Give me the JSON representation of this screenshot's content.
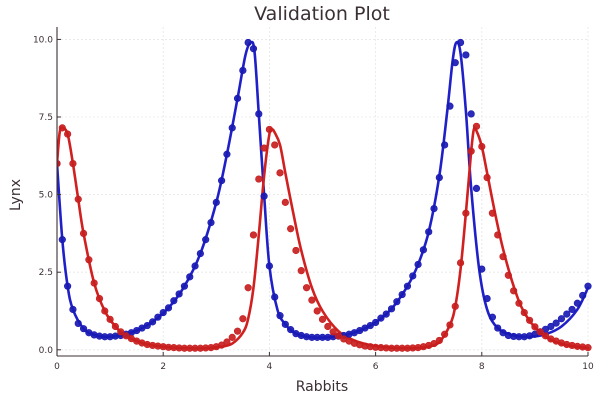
{
  "chart_data": {
    "type": "line",
    "title": "Validation Plot",
    "xlabel": "Rabbits",
    "ylabel": "Lynx",
    "xlim": [
      0,
      10
    ],
    "ylim": [
      -0.2,
      10.4
    ],
    "xticks": [
      0,
      2,
      4,
      6,
      8,
      10
    ],
    "xtick_labels": [
      "0",
      "2",
      "4",
      "6",
      "8",
      "10"
    ],
    "yticks": [
      0,
      2.5,
      5,
      7.5,
      10
    ],
    "ytick_labels": [
      "0.0",
      "2.5",
      "5.0",
      "7.5",
      "10.0"
    ],
    "grid": true,
    "legend": "none",
    "colors": {
      "blue": "#2020c8",
      "red": "#d02020",
      "blue_dots": "#1a1ab4",
      "red_dots": "#c81e1e"
    },
    "series": [
      {
        "style": "line",
        "color": "#2020c8",
        "x": [
          0,
          0.1,
          0.2,
          0.3,
          0.5,
          0.7,
          0.9,
          1.2,
          1.5,
          1.8,
          2.1,
          2.4,
          2.7,
          3.0,
          3.2,
          3.4,
          3.55,
          3.65,
          3.72,
          3.8,
          3.9,
          4.0,
          4.15,
          4.3,
          4.5,
          4.8,
          5.1,
          5.4,
          5.7,
          6.0,
          6.3,
          6.6,
          6.8,
          7.0,
          7.2,
          7.35,
          7.45,
          7.52,
          7.6,
          7.7,
          7.8,
          7.95,
          8.1,
          8.3,
          8.6,
          8.9,
          9.2,
          9.5,
          9.8,
          10.0
        ],
        "y": [
          6.0,
          3.55,
          2.05,
          1.3,
          0.68,
          0.48,
          0.42,
          0.46,
          0.62,
          0.9,
          1.35,
          2.05,
          3.1,
          4.75,
          6.3,
          8.1,
          9.5,
          9.9,
          9.6,
          7.6,
          5.0,
          2.7,
          1.3,
          0.82,
          0.52,
          0.4,
          0.4,
          0.46,
          0.62,
          0.88,
          1.32,
          2.05,
          2.75,
          3.8,
          5.6,
          7.7,
          9.3,
          9.9,
          9.55,
          7.7,
          5.2,
          2.6,
          1.3,
          0.7,
          0.46,
          0.42,
          0.5,
          0.75,
          1.3,
          2.0
        ]
      },
      {
        "style": "line",
        "color": "#d02020",
        "x": [
          0,
          0.05,
          0.1,
          0.2,
          0.3,
          0.4,
          0.5,
          0.7,
          0.9,
          1.1,
          1.3,
          1.6,
          1.9,
          2.2,
          2.5,
          2.8,
          3.1,
          3.3,
          3.5,
          3.6,
          3.7,
          3.8,
          3.9,
          4.0,
          4.05,
          4.1,
          4.2,
          4.3,
          4.45,
          4.6,
          4.8,
          5.0,
          5.3,
          5.6,
          5.9,
          6.2,
          6.5,
          6.8,
          7.0,
          7.2,
          7.4,
          7.5,
          7.6,
          7.7,
          7.8,
          7.85,
          7.9,
          8.0,
          8.1,
          8.25,
          8.4,
          8.6,
          8.8,
          9.1,
          9.4,
          9.7,
          10.0
        ],
        "y": [
          6.0,
          7.0,
          7.15,
          6.95,
          6.0,
          4.85,
          3.75,
          2.15,
          1.25,
          0.75,
          0.45,
          0.22,
          0.12,
          0.07,
          0.05,
          0.05,
          0.1,
          0.2,
          0.55,
          1.0,
          2.0,
          3.7,
          5.6,
          6.95,
          7.1,
          7.0,
          6.6,
          5.7,
          4.4,
          3.2,
          2.0,
          1.25,
          0.6,
          0.3,
          0.15,
          0.08,
          0.05,
          0.06,
          0.1,
          0.25,
          0.8,
          1.4,
          2.6,
          4.4,
          6.4,
          7.1,
          7.05,
          6.55,
          5.7,
          4.4,
          3.25,
          2.05,
          1.2,
          0.55,
          0.25,
          0.12,
          0.06
        ]
      },
      {
        "style": "markers",
        "color": "#1a1ab4",
        "x": [
          0,
          0.1,
          0.2,
          0.3,
          0.4,
          0.5,
          0.6,
          0.7,
          0.8,
          0.9,
          1.0,
          1.1,
          1.2,
          1.3,
          1.4,
          1.5,
          1.6,
          1.7,
          1.8,
          1.9,
          2.0,
          2.1,
          2.2,
          2.3,
          2.4,
          2.5,
          2.6,
          2.7,
          2.8,
          2.9,
          3.0,
          3.1,
          3.2,
          3.3,
          3.4,
          3.5,
          3.6,
          3.7,
          3.8,
          3.9,
          4.0,
          4.1,
          4.2,
          4.3,
          4.4,
          4.5,
          4.6,
          4.7,
          4.8,
          4.9,
          5.0,
          5.1,
          5.2,
          5.3,
          5.4,
          5.5,
          5.6,
          5.7,
          5.8,
          5.9,
          6.0,
          6.1,
          6.2,
          6.3,
          6.4,
          6.5,
          6.6,
          6.7,
          6.8,
          6.9,
          7.0,
          7.1,
          7.2,
          7.3,
          7.4,
          7.5,
          7.6,
          7.7,
          7.8,
          7.9,
          8.0,
          8.1,
          8.2,
          8.3,
          8.4,
          8.5,
          8.6,
          8.7,
          8.8,
          8.9,
          9.0,
          9.1,
          9.2,
          9.3,
          9.4,
          9.5,
          9.6,
          9.7,
          9.8,
          9.9,
          10.0
        ],
        "y": [
          6.0,
          3.55,
          2.05,
          1.3,
          0.85,
          0.68,
          0.55,
          0.48,
          0.44,
          0.42,
          0.42,
          0.44,
          0.46,
          0.5,
          0.55,
          0.62,
          0.7,
          0.78,
          0.9,
          1.05,
          1.2,
          1.35,
          1.58,
          1.8,
          2.05,
          2.35,
          2.7,
          3.1,
          3.55,
          4.1,
          4.75,
          5.45,
          6.3,
          7.15,
          8.1,
          9.0,
          9.9,
          9.7,
          7.6,
          4.95,
          2.7,
          1.7,
          1.1,
          0.82,
          0.65,
          0.52,
          0.46,
          0.42,
          0.4,
          0.4,
          0.4,
          0.4,
          0.42,
          0.44,
          0.46,
          0.5,
          0.55,
          0.62,
          0.7,
          0.78,
          0.88,
          1.02,
          1.15,
          1.32,
          1.55,
          1.78,
          2.05,
          2.38,
          2.75,
          3.22,
          3.8,
          4.55,
          5.55,
          6.6,
          7.85,
          9.25,
          9.9,
          9.5,
          7.6,
          5.2,
          2.6,
          1.65,
          1.05,
          0.7,
          0.55,
          0.46,
          0.43,
          0.42,
          0.42,
          0.45,
          0.5,
          0.58,
          0.66,
          0.75,
          0.86,
          1.0,
          1.15,
          1.3,
          1.5,
          1.75,
          2.05
        ]
      },
      {
        "style": "markers",
        "color": "#c81e1e",
        "x": [
          0,
          0.1,
          0.2,
          0.3,
          0.4,
          0.5,
          0.6,
          0.7,
          0.8,
          0.9,
          1.0,
          1.1,
          1.2,
          1.3,
          1.4,
          1.5,
          1.6,
          1.7,
          1.8,
          1.9,
          2.0,
          2.1,
          2.2,
          2.3,
          2.4,
          2.5,
          2.6,
          2.7,
          2.8,
          2.9,
          3.0,
          3.1,
          3.2,
          3.3,
          3.4,
          3.5,
          3.6,
          3.7,
          3.8,
          3.9,
          4.0,
          4.1,
          4.2,
          4.3,
          4.4,
          4.5,
          4.6,
          4.7,
          4.8,
          4.9,
          5.0,
          5.1,
          5.2,
          5.3,
          5.4,
          5.5,
          5.6,
          5.7,
          5.8,
          5.9,
          6.0,
          6.1,
          6.2,
          6.3,
          6.4,
          6.5,
          6.6,
          6.7,
          6.8,
          6.9,
          7.0,
          7.1,
          7.2,
          7.3,
          7.4,
          7.5,
          7.6,
          7.7,
          7.8,
          7.9,
          8.0,
          8.1,
          8.2,
          8.3,
          8.4,
          8.5,
          8.6,
          8.7,
          8.8,
          8.9,
          9.0,
          9.1,
          9.2,
          9.3,
          9.4,
          9.5,
          9.6,
          9.7,
          9.8,
          9.9,
          10.0
        ],
        "y": [
          6.0,
          7.15,
          6.95,
          6.0,
          4.85,
          3.75,
          2.9,
          2.15,
          1.65,
          1.25,
          0.98,
          0.75,
          0.58,
          0.45,
          0.36,
          0.28,
          0.22,
          0.17,
          0.14,
          0.12,
          0.1,
          0.08,
          0.07,
          0.06,
          0.05,
          0.05,
          0.05,
          0.05,
          0.06,
          0.07,
          0.1,
          0.15,
          0.25,
          0.4,
          0.6,
          1.0,
          2.0,
          3.7,
          5.5,
          6.5,
          7.1,
          6.6,
          5.7,
          4.75,
          3.9,
          3.2,
          2.55,
          2.0,
          1.6,
          1.25,
          0.98,
          0.75,
          0.58,
          0.45,
          0.35,
          0.28,
          0.21,
          0.16,
          0.12,
          0.1,
          0.08,
          0.07,
          0.06,
          0.05,
          0.05,
          0.05,
          0.05,
          0.06,
          0.07,
          0.1,
          0.14,
          0.2,
          0.3,
          0.5,
          0.8,
          1.4,
          2.8,
          4.4,
          6.4,
          7.2,
          6.55,
          5.55,
          4.4,
          3.7,
          3.0,
          2.4,
          1.9,
          1.5,
          1.2,
          0.95,
          0.74,
          0.58,
          0.45,
          0.35,
          0.28,
          0.22,
          0.17,
          0.14,
          0.11,
          0.09,
          0.07
        ]
      }
    ]
  }
}
